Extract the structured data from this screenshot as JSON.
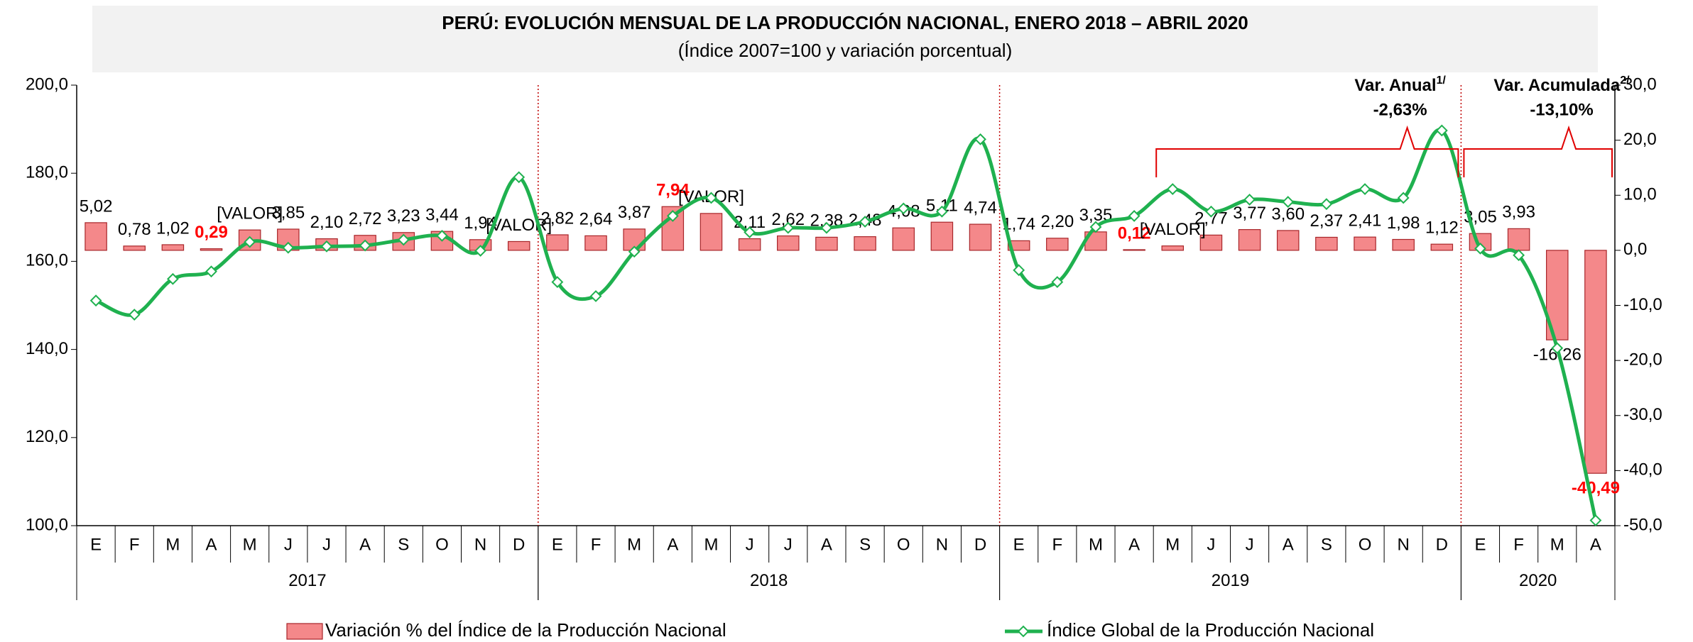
{
  "chart_data": {
    "type": "bar-line",
    "title": "PERÚ: EVOLUCIÓN MENSUAL DE LA PRODUCCIÓN NACIONAL, ENERO 2018 – ABRIL 2020",
    "subtitle": "(Índice 2007=100 y variación porcentual)",
    "groups": [
      {
        "label": "2017",
        "months": [
          "E",
          "F",
          "M",
          "A",
          "M",
          "J",
          "J",
          "A",
          "S",
          "O",
          "N",
          "D"
        ]
      },
      {
        "label": "2018",
        "months": [
          "E",
          "F",
          "M",
          "A",
          "M",
          "J",
          "J",
          "A",
          "S",
          "O",
          "N",
          "D"
        ]
      },
      {
        "label": "2019",
        "months": [
          "E",
          "F",
          "M",
          "A",
          "M",
          "J",
          "J",
          "A",
          "S",
          "O",
          "N",
          "D"
        ]
      },
      {
        "label": "2020",
        "months": [
          "E",
          "F",
          "M",
          "A"
        ]
      }
    ],
    "series": [
      {
        "name": "Variación % del Índice de la Producción Nacional",
        "kind": "bar",
        "axis": "y2",
        "color": "#f4888a",
        "stroke": "#a8262a",
        "values": [
          5.02,
          0.78,
          1.02,
          0.29,
          3.7,
          3.85,
          2.1,
          2.72,
          3.23,
          3.44,
          1.94,
          1.6,
          2.82,
          2.64,
          3.87,
          7.94,
          6.7,
          2.11,
          2.62,
          2.38,
          2.48,
          4.08,
          5.11,
          4.74,
          1.74,
          2.2,
          3.35,
          0.12,
          0.8,
          2.77,
          3.77,
          3.6,
          2.37,
          2.41,
          1.98,
          1.12,
          3.05,
          3.93,
          -16.26,
          -40.49
        ],
        "value_labels": [
          "5,02",
          "0,78",
          "1,02",
          "0,29",
          "[VALOR]",
          "3,85",
          "2,10",
          "2,72",
          "3,23",
          "3,44",
          "1,94",
          "[VALOR]",
          "2,82",
          "2,64",
          "3,87",
          "7,94",
          "[VALOR]",
          "2,11",
          "2,62",
          "2,38",
          "2,48",
          "4,08",
          "5,11",
          "4,74",
          "1,74",
          "2,20",
          "3,35",
          "0,12",
          "[VALOR]",
          "2,77",
          "3,77",
          "3,60",
          "2,37",
          "2,41",
          "1,98",
          "1,12",
          "3,05",
          "3,93",
          "-16,26",
          "-40,49"
        ],
        "highlight_indices": [
          3,
          15,
          27,
          39
        ],
        "highlight_color": "#ff0000"
      },
      {
        "name": "Índice Global de la Producción Nacional",
        "kind": "line",
        "axis": "y",
        "color": "#1fb14f",
        "values": [
          151.1,
          147.9,
          156.0,
          157.7,
          164.4,
          163.1,
          163.4,
          163.6,
          164.9,
          165.8,
          162.4,
          179.1,
          155.3,
          152.1,
          162.2,
          170.3,
          174.4,
          166.6,
          167.6,
          167.6,
          169.0,
          172.0,
          171.3,
          187.7,
          158.0,
          155.3,
          167.8,
          170.3,
          176.4,
          171.3,
          174.0,
          173.5,
          173.0,
          176.4,
          174.4,
          189.7,
          162.9,
          161.4,
          140.3,
          101.2
        ]
      }
    ],
    "ylim": [
      100,
      200
    ],
    "yticks": [
      {
        "value": 100,
        "label": "100,0"
      },
      {
        "value": 120,
        "label": "120,0"
      },
      {
        "value": 140,
        "label": "140,0"
      },
      {
        "value": 160,
        "label": "160,0"
      },
      {
        "value": 180,
        "label": "180,0"
      },
      {
        "value": 200,
        "label": "200,0"
      }
    ],
    "y2lim": [
      -50,
      30
    ],
    "y2ticks": [
      {
        "value": -50,
        "label": "-50,0"
      },
      {
        "value": -40,
        "label": "-40,0"
      },
      {
        "value": -30,
        "label": "-30,0"
      },
      {
        "value": -20,
        "label": "-20,0"
      },
      {
        "value": -10,
        "label": "-10,0"
      },
      {
        "value": 0,
        "label": "0,0"
      },
      {
        "value": 10,
        "label": "10,0"
      },
      {
        "value": 20,
        "label": "20,0"
      },
      {
        "value": 30,
        "label": "30,0"
      }
    ],
    "annotations": [
      {
        "text": "Var. Anual",
        "sup": "1/",
        "value_label": "-2,63%"
      },
      {
        "text": "Var. Acumulada",
        "sup": "2/",
        "value_label": "-13,10%"
      }
    ]
  }
}
